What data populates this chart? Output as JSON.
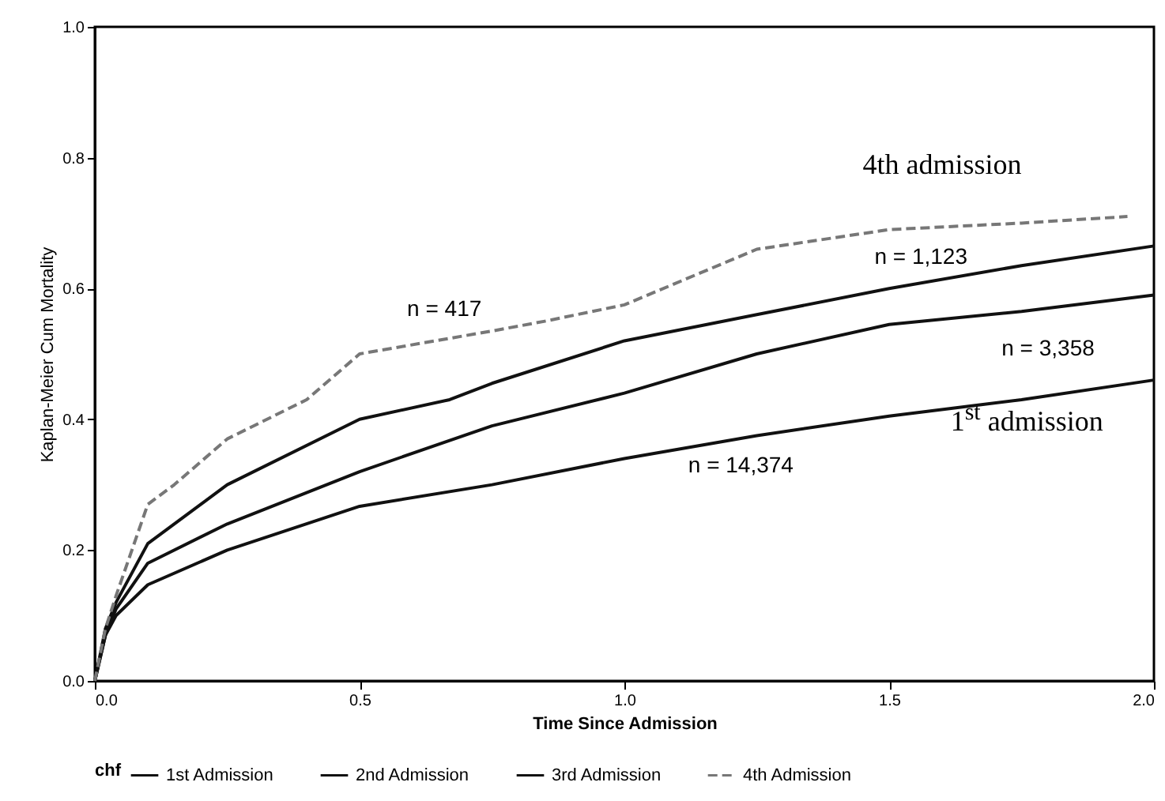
{
  "chart_data": {
    "type": "line",
    "xlabel": "Time Since Admission",
    "ylabel": "Kaplan-Meier Cum Mortality",
    "legend_title": "chf",
    "legend": "bottom",
    "grid": false,
    "marker": "none",
    "xlim": [
      0,
      2
    ],
    "ylim": [
      0,
      1
    ],
    "xticks": [
      {
        "value": 0,
        "label": "0.0"
      },
      {
        "value": 0.5,
        "label": "0.5"
      },
      {
        "value": 1,
        "label": "1.0"
      },
      {
        "value": 1.5,
        "label": "1.5"
      },
      {
        "value": 2,
        "label": "2.0"
      }
    ],
    "yticks": [
      {
        "value": 0,
        "label": "0.0"
      },
      {
        "value": 0.2,
        "label": "0.2"
      },
      {
        "value": 0.4,
        "label": "0.4"
      },
      {
        "value": 0.6,
        "label": "0.6"
      },
      {
        "value": 0.8,
        "label": "0.8"
      },
      {
        "value": 1,
        "label": "1.0"
      }
    ],
    "series": [
      {
        "name": "1st Admission",
        "color": "#111111",
        "line_style": "solid",
        "x": [
          0,
          0.02,
          0.04,
          0.1,
          0.25,
          0.5,
          0.75,
          1.0,
          1.25,
          1.5,
          1.75,
          2.0
        ],
        "values": [
          0,
          0.07,
          0.1,
          0.147,
          0.2,
          0.267,
          0.3,
          0.34,
          0.375,
          0.405,
          0.43,
          0.46
        ]
      },
      {
        "name": "2nd Admission",
        "color": "#111111",
        "line_style": "solid",
        "x": [
          0,
          0.02,
          0.04,
          0.1,
          0.25,
          0.5,
          0.75,
          1.0,
          1.25,
          1.5,
          1.75,
          2.0
        ],
        "values": [
          0,
          0.07,
          0.11,
          0.18,
          0.24,
          0.32,
          0.39,
          0.44,
          0.5,
          0.545,
          0.565,
          0.59
        ]
      },
      {
        "name": "3rd Admission",
        "color": "#111111",
        "line_style": "solid",
        "x": [
          0,
          0.02,
          0.04,
          0.1,
          0.25,
          0.5,
          0.67,
          0.75,
          1.0,
          1.25,
          1.5,
          1.75,
          2.0
        ],
        "values": [
          0,
          0.08,
          0.12,
          0.21,
          0.3,
          0.4,
          0.43,
          0.455,
          0.52,
          0.56,
          0.6,
          0.635,
          0.665
        ]
      },
      {
        "name": "4th Admission",
        "color": "#777777",
        "line_style": "dashed",
        "x": [
          0,
          0.02,
          0.04,
          0.1,
          0.15,
          0.25,
          0.4,
          0.5,
          0.75,
          0.85,
          1.0,
          1.25,
          1.5,
          1.75,
          1.95
        ],
        "values": [
          0,
          0.08,
          0.13,
          0.27,
          0.3,
          0.37,
          0.43,
          0.5,
          0.535,
          0.55,
          0.575,
          0.66,
          0.69,
          0.7,
          0.71
        ]
      }
    ],
    "annotations": [
      "4th admission",
      "n = 417",
      "n = 1,123",
      "n = 3,358",
      "n = 14,374",
      "1$^{st}$ admission"
    ]
  }
}
